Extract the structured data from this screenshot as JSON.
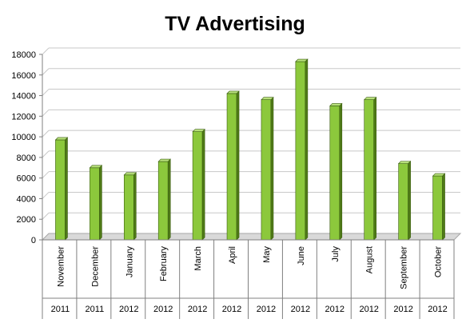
{
  "chart_data": {
    "type": "bar",
    "title": "TV Advertising",
    "categories": [
      "November",
      "December",
      "January",
      "February",
      "March",
      "April",
      "May",
      "June",
      "July",
      "August",
      "September",
      "October"
    ],
    "years": [
      "2011",
      "2011",
      "2012",
      "2012",
      "2012",
      "2012",
      "2012",
      "2012",
      "2012",
      "2012",
      "2012",
      "2012"
    ],
    "values": [
      9700,
      7000,
      6300,
      7600,
      10500,
      14200,
      13600,
      17300,
      13000,
      13600,
      7400,
      6200
    ],
    "ylim": [
      0,
      18000
    ],
    "yticks": [
      "0",
      "2000",
      "4000",
      "6000",
      "8000",
      "10000",
      "12000",
      "14000",
      "16000",
      "18000"
    ],
    "xlabel": "",
    "ylabel": "",
    "grid": true,
    "legend": "none",
    "colors": {
      "bar_front": "#8cc83c",
      "bar_side": "#4f7a17",
      "bar_top": "#b7e07a",
      "bar_outline": "#3b5e10",
      "grid": "#c8c8c8",
      "wall": "#f2f2f2"
    }
  }
}
